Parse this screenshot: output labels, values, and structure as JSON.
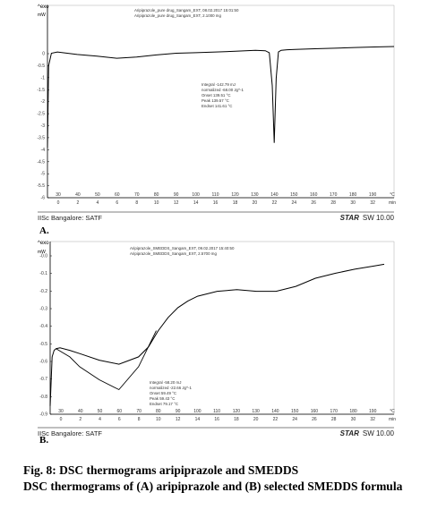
{
  "figure": {
    "title": "Fig. 8: DSC thermograms aripiprazole and SMEDDS",
    "description": "DSC thermograms of (A) aripiprazole and (B) selected SMEDDS formula"
  },
  "chart_data": [
    {
      "type": "line",
      "panel_label": "A.",
      "corner_label": "^exo",
      "y_unit": "mW",
      "x_unit": "°C",
      "x_unit_min": "min",
      "header_lines": [
        "Aripiprazole_pure drug_Sangam_EXT, 08.02.2017 15:01:50",
        "Aripiprazole_pure drug_Sangam_EXT, 2.1000 mg"
      ],
      "annotation": {
        "lines": [
          "Integral     -142.79 mJ",
          "  normalized   -68.00 Jg^-1",
          "Onset          139.51 °C",
          "Peak           139.57 °C",
          "Endset         141.61 °C"
        ]
      },
      "x_temp_ticks": [
        "30",
        "40",
        "50",
        "60",
        "70",
        "80",
        "90",
        "100",
        "110",
        "120",
        "130",
        "140",
        "150",
        "160",
        "170",
        "180",
        "190",
        "°C"
      ],
      "x_time_ticks": [
        "0",
        "2",
        "4",
        "6",
        "8",
        "10",
        "12",
        "14",
        "16",
        "18",
        "20",
        "22",
        "24",
        "26",
        "28",
        "30",
        "32",
        "min"
      ],
      "y_ticks": [
        "0",
        "-0.5",
        "-1",
        "-1.5",
        "-2",
        "-2.5",
        "-3",
        "-3.5",
        "-4",
        "-4.5",
        "-5",
        "-5.5",
        "-6"
      ],
      "xlim": [
        25,
        200
      ],
      "ylim": [
        -6,
        0.5
      ],
      "series": [
        {
          "x": [
            25,
            25.6,
            27,
            30,
            40,
            50,
            60,
            70,
            80,
            90,
            100,
            110,
            120,
            130,
            135,
            137,
            138.5,
            139.5,
            140.5,
            141.6,
            143,
            146,
            150,
            160,
            170,
            180,
            190,
            200
          ],
          "y": [
            -4.0,
            -0.7,
            -0.2,
            -0.15,
            -0.25,
            -0.32,
            -0.4,
            -0.35,
            -0.27,
            -0.2,
            -0.18,
            -0.15,
            -0.12,
            -0.08,
            -0.1,
            -0.18,
            -1.5,
            -3.8,
            -1.2,
            -0.15,
            -0.08,
            -0.06,
            -0.05,
            -0.02,
            0,
            0.03,
            0.05,
            0.07
          ]
        }
      ],
      "footer_left": "IISc Bangalore: SATF",
      "footer_right_brand": "STAR",
      "footer_right_version": "SW 10.00"
    },
    {
      "type": "line",
      "panel_label": "B.",
      "corner_label": "^exo",
      "y_unit": "mW",
      "x_unit": "°C",
      "x_unit_min": "min",
      "header_lines": [
        "Aripiprazole_SMEDDS_Sangam_EXT, 09.02.2017 15:40:50",
        "Aripiprazole_SMEDDS_Sangam_EXT, 2.5700 mg"
      ],
      "annotation": {
        "lines": [
          "Integral     -58.20 mJ",
          "  normalized   -22.66 Jg^-1",
          "Onset          59.49 °C",
          "Peak           59.43 °C",
          "Endset         79.17 °C"
        ]
      },
      "x_temp_ticks": [
        "30",
        "40",
        "50",
        "60",
        "70",
        "80",
        "90",
        "100",
        "110",
        "120",
        "130",
        "140",
        "150",
        "160",
        "170",
        "180",
        "190",
        "°C"
      ],
      "x_time_ticks": [
        "0",
        "2",
        "4",
        "6",
        "8",
        "10",
        "12",
        "14",
        "16",
        "18",
        "20",
        "22",
        "24",
        "26",
        "28",
        "30",
        "32",
        "min"
      ],
      "y_ticks": [
        "-0.0",
        "-0.1",
        "-0.2",
        "-0.3",
        "-0.4",
        "-0.5",
        "-0.6",
        "-0.7",
        "-0.8",
        "-0.9"
      ],
      "xlim": [
        25,
        200
      ],
      "ylim": [
        -0.95,
        0.0
      ],
      "series": [
        {
          "x": [
            25,
            26,
            27,
            28,
            30,
            35,
            40,
            50,
            60,
            70,
            75,
            80,
            85,
            90,
            95,
            100,
            110,
            120,
            130,
            140,
            150,
            160,
            170,
            180,
            190,
            195
          ],
          "y": [
            -0.9,
            -0.6,
            -0.56,
            -0.55,
            -0.545,
            -0.56,
            -0.58,
            -0.62,
            -0.645,
            -0.6,
            -0.54,
            -0.44,
            -0.36,
            -0.3,
            -0.26,
            -0.23,
            -0.2,
            -0.19,
            -0.2,
            -0.2,
            -0.17,
            -0.12,
            -0.09,
            -0.065,
            -0.045,
            -0.035
          ]
        }
      ],
      "baseline": {
        "x": [
          28,
          35,
          40,
          50,
          60,
          70,
          79
        ],
        "y": [
          -0.55,
          -0.6,
          -0.66,
          -0.74,
          -0.8,
          -0.66,
          -0.44
        ]
      },
      "footer_left": "IISc Bangalore: SATF",
      "footer_right_brand": "STAR",
      "footer_right_version": "SW 10.00"
    }
  ]
}
